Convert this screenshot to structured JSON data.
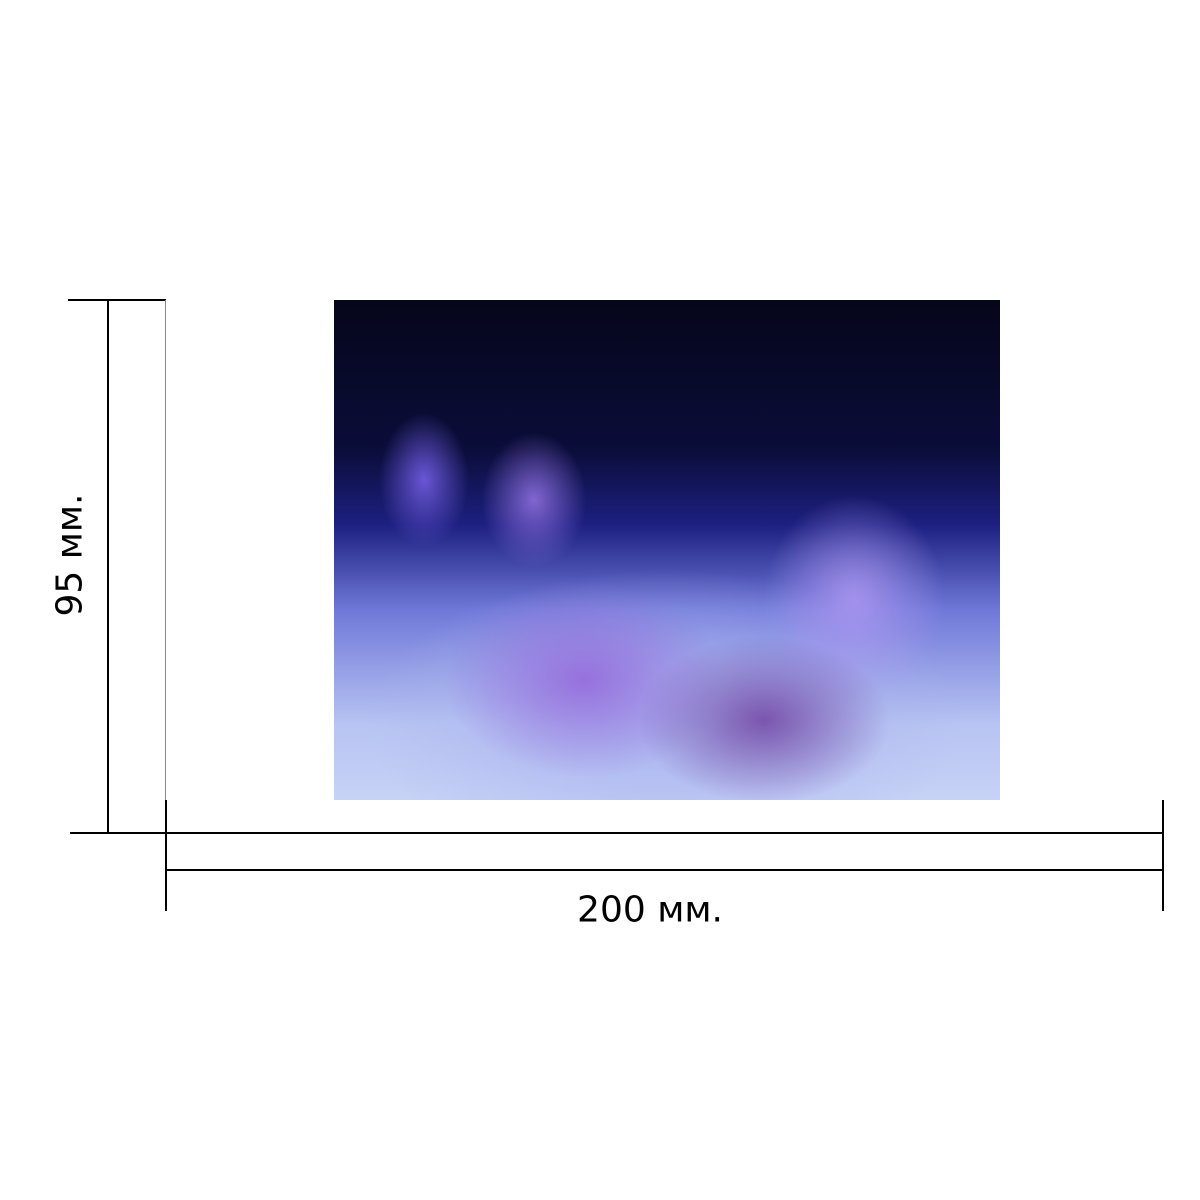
{
  "dimensions": {
    "width_label": "200 мм.",
    "height_label": "95 мм."
  },
  "photo": {
    "subject": "aquarium-corals-photo"
  }
}
